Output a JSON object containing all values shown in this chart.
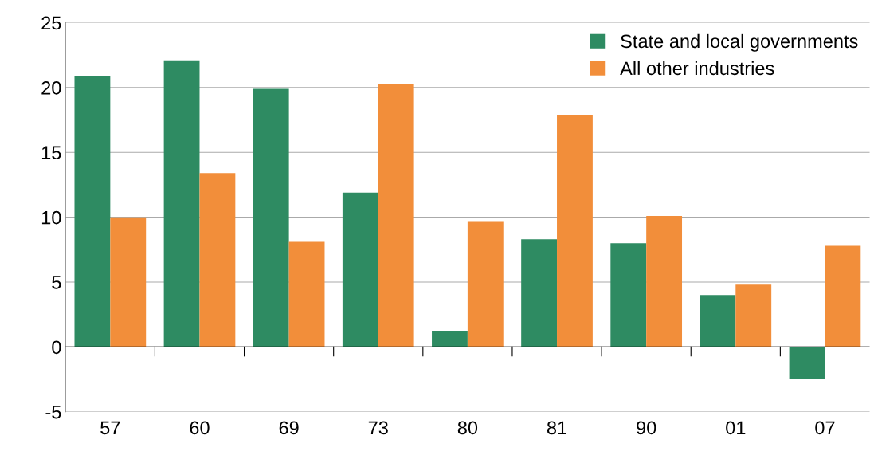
{
  "chart_data": {
    "type": "bar",
    "categories": [
      "57",
      "60",
      "69",
      "73",
      "80",
      "81",
      "90",
      "01",
      "07"
    ],
    "series": [
      {
        "name": "State and local governments",
        "color": "#2e8b62",
        "values": [
          20.9,
          22.1,
          19.9,
          11.9,
          1.2,
          8.3,
          8.0,
          4.0,
          -2.5
        ]
      },
      {
        "name": "All other industries",
        "color": "#f28e3a",
        "values": [
          10.0,
          13.4,
          8.1,
          20.3,
          9.7,
          17.9,
          10.1,
          4.8,
          7.8
        ]
      }
    ],
    "ylim": [
      -5,
      25
    ],
    "yticks": [
      -5,
      0,
      5,
      10,
      15,
      20,
      25
    ],
    "grid": "y",
    "legend": "top right"
  }
}
